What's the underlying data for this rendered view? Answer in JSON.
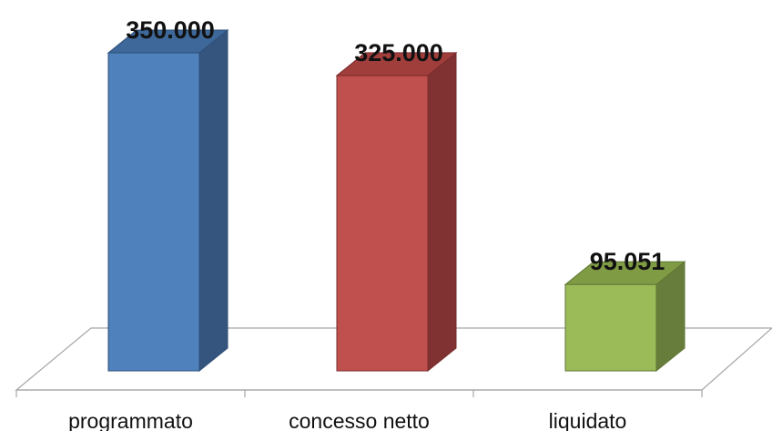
{
  "chart_data": {
    "type": "bar",
    "title": "",
    "xlabel": "",
    "ylabel": "",
    "three_d": true,
    "grid": false,
    "legend": "none",
    "categories": [
      "programmato",
      "concesso netto",
      "liquidato"
    ],
    "values": [
      350000,
      325000,
      95051
    ],
    "value_labels": [
      "350.000",
      "325.000",
      "95.051"
    ],
    "ylim": [
      0,
      350000
    ],
    "colors": {
      "front": [
        "#4f81bd",
        "#c0504d",
        "#9bbb59"
      ],
      "side": [
        "#35557f",
        "#7f3231",
        "#677d3b"
      ],
      "top": [
        "#3e6899",
        "#a03e3c",
        "#7f9b44"
      ],
      "edge": [
        "#2e4f78",
        "#7a2d2c",
        "#5f7634"
      ]
    }
  }
}
